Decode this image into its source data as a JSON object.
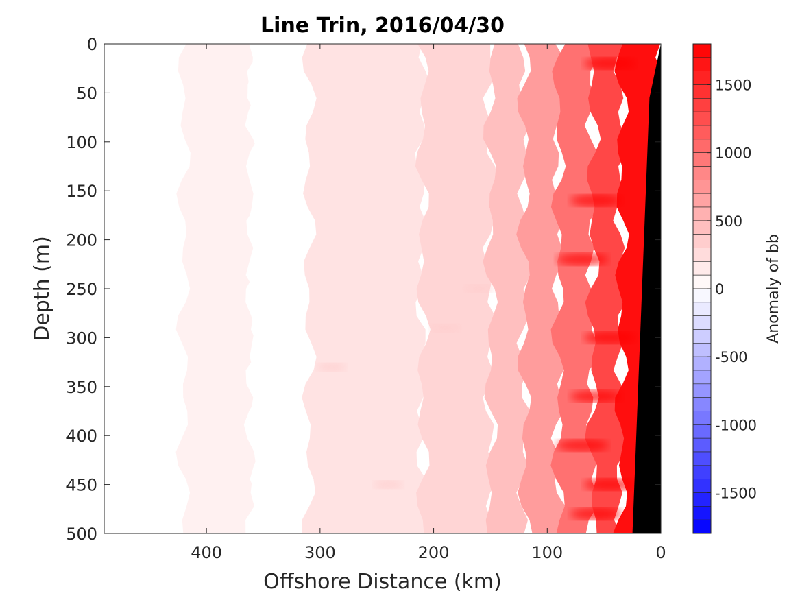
{
  "chart_data": {
    "type": "heatmap",
    "title": "Line Trin, 2016/04/30",
    "xlabel": "Offshore Distance (km)",
    "ylabel": "Depth (m)",
    "xlim": [
      490,
      0
    ],
    "ylim": [
      0,
      500
    ],
    "x_ticks": [
      400,
      300,
      200,
      100,
      0
    ],
    "y_ticks": [
      0,
      50,
      100,
      150,
      200,
      250,
      300,
      350,
      400,
      450,
      500
    ],
    "x_reversed": true,
    "y_reversed": true,
    "colorbar": {
      "label": "Anomaly of bb",
      "range": [
        -1800,
        1800
      ],
      "levels": 36,
      "ticks": [
        1500,
        1000,
        500,
        0,
        -500,
        -1000,
        -1500
      ],
      "colormap": "blue-white-red",
      "color_low": "#0000ff",
      "color_mid": "#ffffff",
      "color_high": "#ff0000"
    },
    "distance_bands": [
      {
        "x_from": 490,
        "x_to": 420,
        "anomaly": 0
      },
      {
        "x_from": 420,
        "x_to": 360,
        "anomaly": 100
      },
      {
        "x_from": 360,
        "x_to": 310,
        "anomaly": 0
      },
      {
        "x_from": 310,
        "x_to": 210,
        "anomaly": 200
      },
      {
        "x_from": 210,
        "x_to": 150,
        "anomaly": 300
      },
      {
        "x_from": 150,
        "x_to": 120,
        "anomaly": 450
      },
      {
        "x_from": 120,
        "x_to": 90,
        "anomaly": 700
      },
      {
        "x_from": 90,
        "x_to": 60,
        "anomaly": 1000
      },
      {
        "x_from": 60,
        "x_to": 35,
        "anomaly": 1300
      },
      {
        "x_from": 35,
        "x_to": 0,
        "anomaly": 1700
      }
    ],
    "seafloor": {
      "color": "#000000",
      "points": [
        [
          0,
          0
        ],
        [
          10,
          55
        ],
        [
          25,
          500
        ],
        [
          0,
          500
        ]
      ]
    }
  }
}
